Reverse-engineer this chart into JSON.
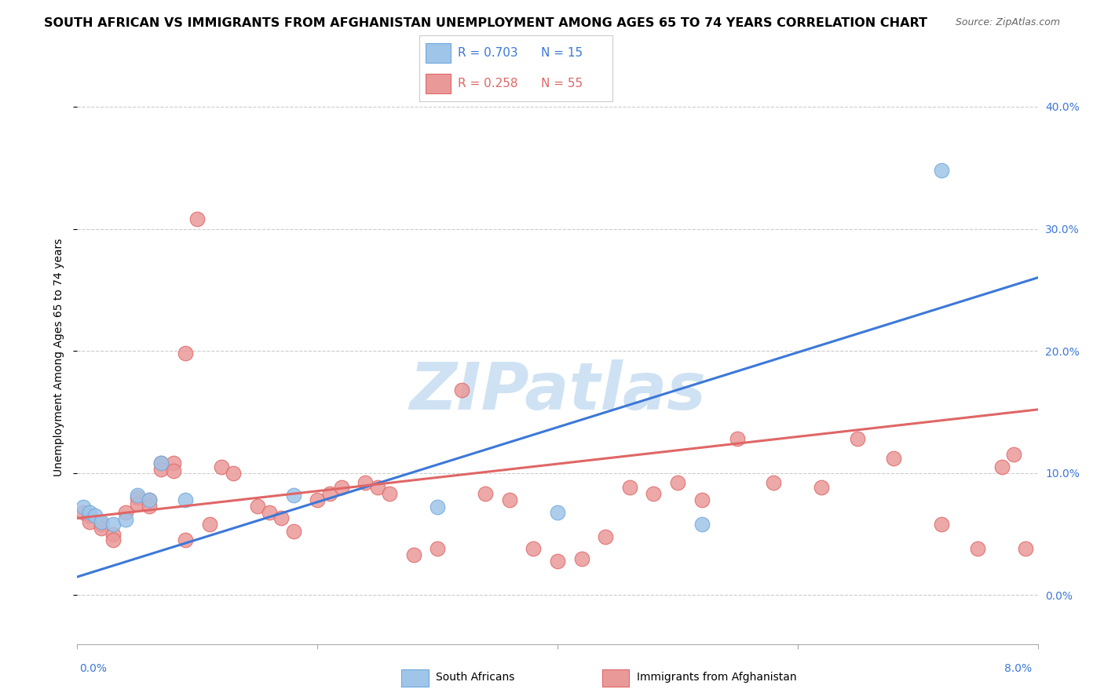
{
  "title": "SOUTH AFRICAN VS IMMIGRANTS FROM AFGHANISTAN UNEMPLOYMENT AMONG AGES 65 TO 74 YEARS CORRELATION CHART",
  "source": "Source: ZipAtlas.com",
  "ylabel": "Unemployment Among Ages 65 to 74 years",
  "watermark": "ZIPatlas",
  "blue_R": "R = 0.703",
  "blue_N": "N = 15",
  "pink_R": "R = 0.258",
  "pink_N": "N = 55",
  "legend_label_blue": "South Africans",
  "legend_label_pink": "Immigrants from Afghanistan",
  "xmin": 0.0,
  "xmax": 0.08,
  "ymin": -0.04,
  "ymax": 0.43,
  "yticks": [
    0.0,
    0.1,
    0.2,
    0.3,
    0.4
  ],
  "ytick_labels": [
    "0.0%",
    "10.0%",
    "20.0%",
    "30.0%",
    "40.0%"
  ],
  "blue_color": "#9fc5e8",
  "pink_color": "#ea9999",
  "blue_edge_color": "#6fa8dc",
  "pink_edge_color": "#e06666",
  "blue_line_color": "#3c78d8",
  "pink_line_color": "#e06666",
  "grid_color": "#cccccc",
  "blue_scatter_x": [
    0.0005,
    0.001,
    0.0015,
    0.002,
    0.003,
    0.004,
    0.005,
    0.006,
    0.007,
    0.009,
    0.018,
    0.03,
    0.04,
    0.052,
    0.072
  ],
  "blue_scatter_y": [
    0.072,
    0.068,
    0.065,
    0.06,
    0.058,
    0.062,
    0.082,
    0.078,
    0.108,
    0.078,
    0.082,
    0.072,
    0.068,
    0.058,
    0.348
  ],
  "pink_scatter_x": [
    0.0005,
    0.001,
    0.001,
    0.002,
    0.002,
    0.003,
    0.003,
    0.004,
    0.005,
    0.005,
    0.006,
    0.006,
    0.007,
    0.007,
    0.008,
    0.008,
    0.009,
    0.009,
    0.01,
    0.011,
    0.012,
    0.013,
    0.015,
    0.016,
    0.017,
    0.018,
    0.02,
    0.021,
    0.022,
    0.024,
    0.025,
    0.026,
    0.028,
    0.03,
    0.032,
    0.034,
    0.036,
    0.038,
    0.04,
    0.042,
    0.044,
    0.046,
    0.048,
    0.05,
    0.052,
    0.055,
    0.058,
    0.062,
    0.065,
    0.068,
    0.072,
    0.075,
    0.077,
    0.078,
    0.079
  ],
  "pink_scatter_y": [
    0.068,
    0.065,
    0.06,
    0.058,
    0.055,
    0.05,
    0.045,
    0.068,
    0.08,
    0.075,
    0.078,
    0.073,
    0.108,
    0.103,
    0.108,
    0.102,
    0.198,
    0.045,
    0.308,
    0.058,
    0.105,
    0.1,
    0.073,
    0.068,
    0.063,
    0.052,
    0.078,
    0.083,
    0.088,
    0.092,
    0.088,
    0.083,
    0.033,
    0.038,
    0.168,
    0.083,
    0.078,
    0.038,
    0.028,
    0.03,
    0.048,
    0.088,
    0.083,
    0.092,
    0.078,
    0.128,
    0.092,
    0.088,
    0.128,
    0.112,
    0.058,
    0.038,
    0.105,
    0.115,
    0.038
  ],
  "blue_line_x": [
    0.0,
    0.08
  ],
  "blue_line_y": [
    0.015,
    0.26
  ],
  "pink_line_x": [
    0.0,
    0.08
  ],
  "pink_line_y": [
    0.063,
    0.152
  ],
  "bg_color": "#ffffff",
  "title_fontsize": 11.5,
  "source_fontsize": 9,
  "axis_label_fontsize": 10,
  "tick_fontsize": 10,
  "watermark_fontsize": 60,
  "watermark_color": "#cfe2f3",
  "legend_fontsize": 11
}
